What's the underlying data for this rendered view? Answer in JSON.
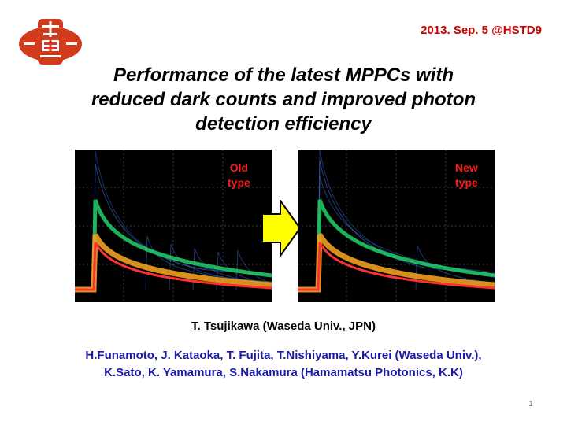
{
  "header": {
    "date_venue": "2013. Sep. 5 @HSTD9"
  },
  "logo": {
    "icon": "university-crest-icon",
    "color": "#d23a1c"
  },
  "title": {
    "line1": "Performance of the latest MPPCs with",
    "line2": "reduced dark counts and improved photon",
    "line3": "detection efficiency"
  },
  "scopes": {
    "old": {
      "label_line1": "Old",
      "label_line2": "type"
    },
    "new": {
      "label_line1": "New",
      "label_line2": "type"
    }
  },
  "arrow": {
    "icon": "right-arrow-icon",
    "fill": "#ffff00",
    "stroke": "#000000"
  },
  "authors": {
    "presenter": "T. Tsujikawa (Waseda Univ., JPN)",
    "coauthors_line1": "H.Funamoto, J. Kataoka, T. Fujita, T.Nishiyama, Y.Kurei (Waseda Univ.),",
    "coauthors_line2": "K.Sato, K. Yamamura, S.Nakamura (Hamamatsu Photonics, K.K)"
  },
  "colors": {
    "date_text": "#cc0000",
    "scope_label": "#ff1a1a",
    "coauthors_text": "#1a1aa6"
  },
  "footer": {
    "page_number": "1"
  }
}
